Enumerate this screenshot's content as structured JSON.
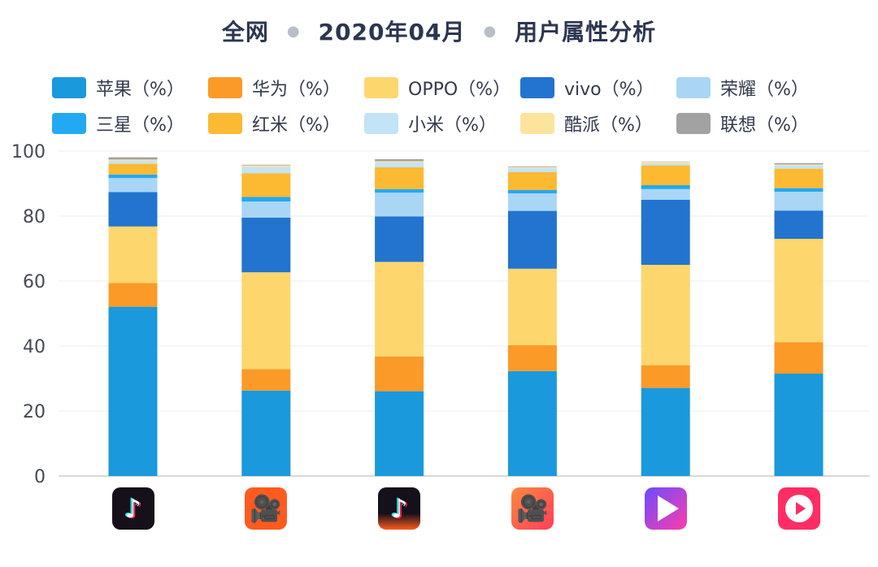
{
  "title": {
    "scope": "全网",
    "period": "2020年04月",
    "subject": "用户属性分析"
  },
  "legend": [
    {
      "name": "苹果（%）",
      "color": "#1a99dc"
    },
    {
      "name": "华为（%）",
      "color": "#fb9a27"
    },
    {
      "name": "OPPO（%）",
      "color": "#fdd66e"
    },
    {
      "name": "vivo（%）",
      "color": "#2274cf"
    },
    {
      "name": "荣耀（%）",
      "color": "#a9d6f5"
    },
    {
      "name": "三星（%）",
      "color": "#23a9f2"
    },
    {
      "name": "红米（%）",
      "color": "#fcb932"
    },
    {
      "name": "小米（%）",
      "color": "#c3e3f7"
    },
    {
      "name": "酷派（%）",
      "color": "#fde49d"
    },
    {
      "name": "联想（%）",
      "color": "#a2a2a2"
    }
  ],
  "apps": [
    {
      "icon": "douyin-icon",
      "style": "douyin",
      "glyph": "♪"
    },
    {
      "icon": "kuaishou-icon",
      "style": "kuaishou",
      "glyph": "🎥"
    },
    {
      "icon": "douyin-huoshan-icon",
      "style": "douyin-hot",
      "glyph": "♪"
    },
    {
      "icon": "kuaishou-lite-icon",
      "style": "kuaishou-lite",
      "glyph": "🎥"
    },
    {
      "icon": "weishi-icon",
      "style": "weishi",
      "glyph": ""
    },
    {
      "icon": "huoshan-video-icon",
      "style": "huoshan",
      "glyph": ""
    }
  ],
  "chart_data": {
    "type": "bar",
    "stacked": true,
    "title": "全网 · 2020年04月 · 用户属性分析",
    "xlabel": "",
    "ylabel": "",
    "ylim": [
      0,
      100
    ],
    "yticks": [
      0,
      20,
      40,
      60,
      80,
      100
    ],
    "grid": true,
    "legend_position": "top",
    "categories": [
      "app1",
      "app2",
      "app3",
      "app4",
      "app5",
      "app6"
    ],
    "series": [
      {
        "name": "苹果（%）",
        "color": "#1a99dc",
        "values": [
          52.1,
          26.3,
          26.1,
          32.3,
          27.1,
          31.5
        ]
      },
      {
        "name": "华为（%）",
        "color": "#fb9a27",
        "values": [
          7.3,
          6.6,
          10.7,
          8.0,
          7.0,
          9.7
        ]
      },
      {
        "name": "OPPO（%）",
        "color": "#fdd66e",
        "values": [
          17.4,
          29.8,
          29.1,
          23.5,
          30.9,
          31.8
        ]
      },
      {
        "name": "vivo（%）",
        "color": "#2274cf",
        "values": [
          10.6,
          16.8,
          14.0,
          17.8,
          20.0,
          8.7
        ]
      },
      {
        "name": "荣耀（%）",
        "color": "#a9d6f5",
        "values": [
          4.3,
          5.0,
          7.3,
          5.4,
          3.3,
          5.8
        ]
      },
      {
        "name": "三星（%）",
        "color": "#23a9f2",
        "values": [
          1.1,
          1.4,
          1.1,
          1.0,
          1.2,
          1.1
        ]
      },
      {
        "name": "红米（%）",
        "color": "#fcb932",
        "values": [
          3.3,
          7.3,
          6.7,
          5.5,
          6.1,
          6.0
        ]
      },
      {
        "name": "小米（%）",
        "color": "#c3e3f7",
        "values": [
          0.9,
          1.9,
          1.5,
          1.3,
          0.7,
          1.0
        ]
      },
      {
        "name": "酷派（%）",
        "color": "#fde49d",
        "values": [
          0.4,
          0.5,
          0.4,
          0.3,
          0.4,
          0.3
        ]
      },
      {
        "name": "联想（%）",
        "color": "#a2a2a2",
        "values": [
          0.7,
          0.2,
          0.6,
          0.2,
          0.1,
          0.4
        ]
      }
    ]
  }
}
